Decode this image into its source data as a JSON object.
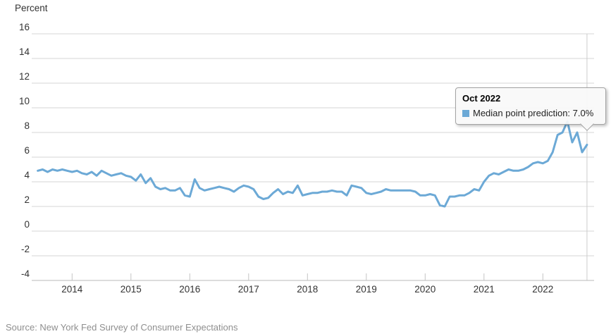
{
  "axis_title": "Percent",
  "source_note": "Source: New York Fed Survey of Consumer Expectations",
  "tooltip": {
    "title": "Oct 2022",
    "series_label": "Median point prediction",
    "value": "7.0%",
    "text": "Median point prediction: 7.0%"
  },
  "colors": {
    "line": "#6CA9D6",
    "swatch": "#6CA9D6",
    "gridline": "#d6d6d6",
    "axis_line": "#b8b8b8",
    "tick": "#c4c4c4",
    "crosshair": "#cccccc",
    "label": "#333333",
    "source_text": "#8f8f8f"
  },
  "chart_data": {
    "type": "line",
    "title": "",
    "ylabel": "Percent",
    "xlabel": "",
    "unit": "percent",
    "grid": "horizontal",
    "legend": "none (tooltip only)",
    "ylim": [
      -4,
      16
    ],
    "y_ticks": [
      16,
      14,
      12,
      10,
      8,
      6,
      4,
      2,
      0,
      -2,
      -4
    ],
    "x_tick_years": [
      2014,
      2015,
      2016,
      2017,
      2018,
      2019,
      2020,
      2021,
      2022
    ],
    "xlim": [
      "2013-06",
      "2022-12"
    ],
    "highlighted_point": {
      "month": "Oct 2022",
      "value": 7.0
    },
    "series": [
      {
        "name": "Median point prediction",
        "color": "#6CA9D6",
        "frequency": "monthly",
        "start_month": "2013-06",
        "end_month": "2022-10",
        "values": [
          4.9,
          5.0,
          4.8,
          5.0,
          4.9,
          5.0,
          4.9,
          4.8,
          4.9,
          4.7,
          4.6,
          4.8,
          4.5,
          4.9,
          4.7,
          4.5,
          4.6,
          4.7,
          4.5,
          4.4,
          4.1,
          4.6,
          3.9,
          4.3,
          3.6,
          3.4,
          3.5,
          3.3,
          3.3,
          3.5,
          2.9,
          2.8,
          4.2,
          3.5,
          3.3,
          3.4,
          3.5,
          3.6,
          3.5,
          3.4,
          3.2,
          3.5,
          3.7,
          3.6,
          3.4,
          2.8,
          2.6,
          2.7,
          3.1,
          3.4,
          3.0,
          3.2,
          3.1,
          3.7,
          2.9,
          3.0,
          3.1,
          3.1,
          3.2,
          3.2,
          3.3,
          3.2,
          3.2,
          2.9,
          3.7,
          3.6,
          3.5,
          3.1,
          3.0,
          3.1,
          3.2,
          3.4,
          3.3,
          3.3,
          3.3,
          3.3,
          3.3,
          3.2,
          2.9,
          2.9,
          3.0,
          2.9,
          2.1,
          2.0,
          2.8,
          2.8,
          2.9,
          2.9,
          3.1,
          3.4,
          3.3,
          4.0,
          4.5,
          4.7,
          4.6,
          4.8,
          5.0,
          4.9,
          4.9,
          5.0,
          5.2,
          5.5,
          5.6,
          5.5,
          5.7,
          6.4,
          7.8,
          8.0,
          8.9,
          7.2,
          8.0,
          6.4,
          7.0
        ]
      }
    ]
  }
}
